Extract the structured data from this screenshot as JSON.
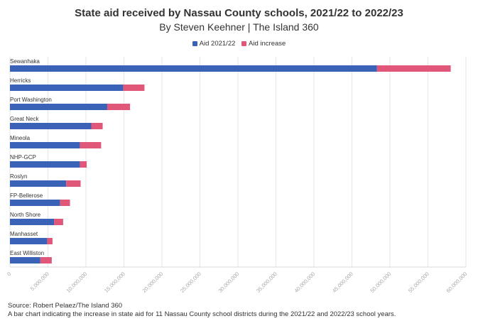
{
  "header": {
    "title": "State aid received by Nassau County schools, 2021/22 to 2022/23",
    "subtitle": "By Steven Keehner | The Island 360"
  },
  "footer": {
    "source": "Source: Robert Pelaez/The Island 360",
    "caption": "A bar chart indicating the increase in state aid for 11 Nassau County school districts during the 2021/22 and 2022/23 school years."
  },
  "colors": {
    "aid": "#3a63b8",
    "increase": "#e0577a",
    "grid": "#e6e6e6",
    "tick_text": "#aaaaaa"
  },
  "chart_data": {
    "type": "bar",
    "orientation": "horizontal",
    "stacked": true,
    "categories": [
      "Sewanhaka",
      "Herricks",
      "Port Washington",
      "Great Neck",
      "Mineola",
      "NHP-GCP",
      "Roslyn",
      "FP-Bellerose",
      "North Shore",
      "Manhasset",
      "East Williston"
    ],
    "series": [
      {
        "name": "Aid 2021/22",
        "values": [
          48300000,
          14900000,
          12800000,
          10700000,
          9200000,
          9200000,
          7400000,
          6600000,
          5800000,
          4900000,
          4000000
        ]
      },
      {
        "name": "Aid increase",
        "values": [
          9700000,
          2800000,
          3000000,
          1500000,
          2800000,
          900000,
          1900000,
          1300000,
          1200000,
          700000,
          1500000
        ]
      }
    ],
    "xlim": [
      0,
      60000000
    ],
    "xticks": [
      "0",
      "5,000,000",
      "10,000,000",
      "15,000,000",
      "20,000,000",
      "25,000,000",
      "30,000,000",
      "35,000,000",
      "40,000,000",
      "45,000,000",
      "50,000,000",
      "55,000,000",
      "60,000,000"
    ],
    "legend_position": "top-center",
    "grid": "vertical"
  }
}
